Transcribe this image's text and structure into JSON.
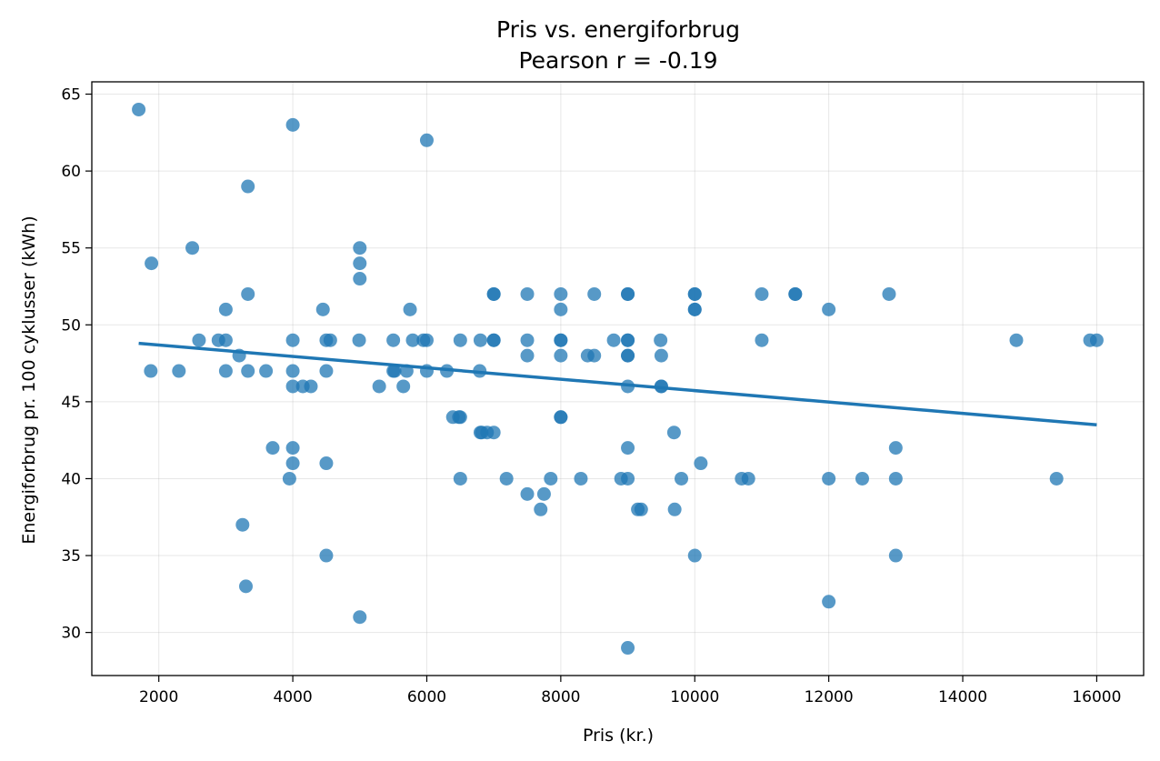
{
  "chart_data": {
    "type": "scatter",
    "title": "Pris vs. energiforbrug",
    "subtitle": "Pearson r = -0.19",
    "xlabel": "Pris (kr.)",
    "ylabel": "Energiforbrug pr. 100 cyklusser (kWh)",
    "xlim": [
      1000,
      16700
    ],
    "ylim": [
      27.2,
      65.8
    ],
    "xticks": [
      2000,
      4000,
      6000,
      8000,
      10000,
      12000,
      14000,
      16000
    ],
    "yticks": [
      30,
      35,
      40,
      45,
      50,
      55,
      60,
      65
    ],
    "grid": true,
    "point_color": "#1f77b4",
    "line_color": "#1f77b4",
    "trendline": {
      "x": [
        1700,
        16000
      ],
      "y": [
        48.8,
        43.5
      ]
    },
    "points": [
      [
        1700,
        64
      ],
      [
        1890,
        54
      ],
      [
        1880,
        47
      ],
      [
        2300,
        47
      ],
      [
        2500,
        55
      ],
      [
        2600,
        49
      ],
      [
        2890,
        49
      ],
      [
        3000,
        49
      ],
      [
        3000,
        51
      ],
      [
        3000,
        47
      ],
      [
        3200,
        48
      ],
      [
        3250,
        37
      ],
      [
        3300,
        33
      ],
      [
        3330,
        47
      ],
      [
        3330,
        52
      ],
      [
        3330,
        59
      ],
      [
        3600,
        47
      ],
      [
        3700,
        42
      ],
      [
        3950,
        40
      ],
      [
        4000,
        63
      ],
      [
        4000,
        49
      ],
      [
        4000,
        47
      ],
      [
        4000,
        46
      ],
      [
        4000,
        42
      ],
      [
        4000,
        41
      ],
      [
        4150,
        46
      ],
      [
        4270,
        46
      ],
      [
        4450,
        51
      ],
      [
        4500,
        49
      ],
      [
        4500,
        47
      ],
      [
        4500,
        41
      ],
      [
        4500,
        35
      ],
      [
        4560,
        49
      ],
      [
        4990,
        49
      ],
      [
        5000,
        55
      ],
      [
        5000,
        54
      ],
      [
        5000,
        53
      ],
      [
        5000,
        31
      ],
      [
        5290,
        46
      ],
      [
        5500,
        49
      ],
      [
        5500,
        47
      ],
      [
        5520,
        47
      ],
      [
        5650,
        46
      ],
      [
        5700,
        47
      ],
      [
        5750,
        51
      ],
      [
        5790,
        49
      ],
      [
        5950,
        49
      ],
      [
        6000,
        49
      ],
      [
        6000,
        62
      ],
      [
        6000,
        47
      ],
      [
        6300,
        47
      ],
      [
        6390,
        44
      ],
      [
        6480,
        44
      ],
      [
        6500,
        44
      ],
      [
        6500,
        49
      ],
      [
        6500,
        40
      ],
      [
        6790,
        47
      ],
      [
        6800,
        49
      ],
      [
        6800,
        43
      ],
      [
        6820,
        43
      ],
      [
        6900,
        43
      ],
      [
        7000,
        52
      ],
      [
        7000,
        52
      ],
      [
        7000,
        49
      ],
      [
        7000,
        49
      ],
      [
        7000,
        43
      ],
      [
        7190,
        40
      ],
      [
        7500,
        52
      ],
      [
        7500,
        49
      ],
      [
        7500,
        48
      ],
      [
        7500,
        39
      ],
      [
        7700,
        38
      ],
      [
        7750,
        39
      ],
      [
        7850,
        40
      ],
      [
        8000,
        52
      ],
      [
        8000,
        51
      ],
      [
        8000,
        49
      ],
      [
        8000,
        49
      ],
      [
        8000,
        48
      ],
      [
        8000,
        44
      ],
      [
        8000,
        44
      ],
      [
        8300,
        40
      ],
      [
        8400,
        48
      ],
      [
        8500,
        48
      ],
      [
        8500,
        52
      ],
      [
        8790,
        49
      ],
      [
        8900,
        40
      ],
      [
        9000,
        52
      ],
      [
        9000,
        52
      ],
      [
        9000,
        49
      ],
      [
        9000,
        49
      ],
      [
        9000,
        48
      ],
      [
        9000,
        48
      ],
      [
        9000,
        46
      ],
      [
        9000,
        42
      ],
      [
        9000,
        40
      ],
      [
        9000,
        29
      ],
      [
        9150,
        38
      ],
      [
        9200,
        38
      ],
      [
        9490,
        49
      ],
      [
        9500,
        48
      ],
      [
        9500,
        46
      ],
      [
        9500,
        46
      ],
      [
        9690,
        43
      ],
      [
        9700,
        38
      ],
      [
        9800,
        40
      ],
      [
        10000,
        52
      ],
      [
        10000,
        52
      ],
      [
        10000,
        51
      ],
      [
        10000,
        51
      ],
      [
        10000,
        35
      ],
      [
        10090,
        41
      ],
      [
        10700,
        40
      ],
      [
        10800,
        40
      ],
      [
        11000,
        52
      ],
      [
        11000,
        49
      ],
      [
        11500,
        52
      ],
      [
        11500,
        52
      ],
      [
        12000,
        51
      ],
      [
        12000,
        40
      ],
      [
        12000,
        32
      ],
      [
        12500,
        40
      ],
      [
        12900,
        52
      ],
      [
        13000,
        42
      ],
      [
        13000,
        40
      ],
      [
        13000,
        35
      ],
      [
        14800,
        49
      ],
      [
        15400,
        40
      ],
      [
        15900,
        49
      ],
      [
        16000,
        49
      ]
    ]
  }
}
